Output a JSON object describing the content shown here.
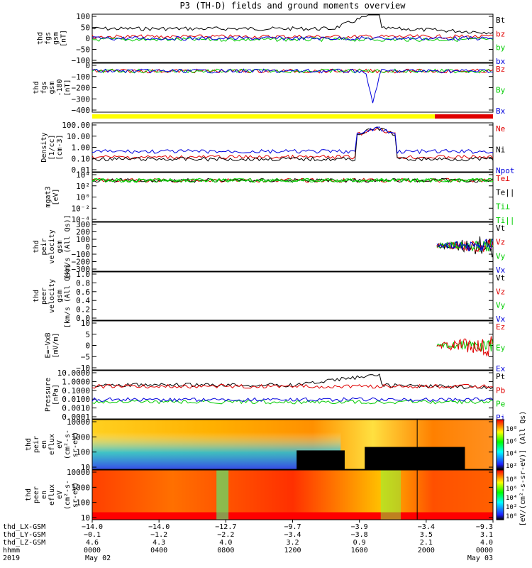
{
  "title": "P3 (TH-D) fields and ground moments overview",
  "colors": {
    "black": "#000000",
    "red": "#e00000",
    "green": "#00cc00",
    "blue": "#0000dd",
    "yellow": "#ffff00"
  },
  "chart_data": [
    {
      "type": "line",
      "ylabel": [
        "thd",
        "fgs",
        "gsm",
        "[nT]"
      ],
      "yticks": [
        "100",
        "50",
        "0",
        "−50",
        "−100"
      ],
      "legend": [
        {
          "name": "Bt",
          "color": "black"
        },
        {
          "name": "bz",
          "color": "red"
        },
        {
          "name": "by",
          "color": "green"
        },
        {
          "name": "bx",
          "color": "blue"
        }
      ]
    },
    {
      "type": "line",
      "ylabel": [
        "thd",
        "fgs",
        "gsm",
        "-180",
        "[nT]"
      ],
      "yticks": [
        "0",
        "−100",
        "−200",
        "−300",
        "−400"
      ],
      "legend": [
        {
          "name": "Bz",
          "color": "red"
        },
        {
          "name": "By",
          "color": "green"
        },
        {
          "name": "Bx",
          "color": "blue"
        }
      ]
    },
    {
      "type": "line",
      "ylabel": [
        "Density",
        "[1/cc]",
        "[cm-3]"
      ],
      "yticks": [
        "100.00",
        "10.00",
        "1.00",
        "0.10",
        "0.01"
      ],
      "legend": [
        {
          "name": "Ne",
          "color": "red"
        },
        {
          "name": "Ni",
          "color": "black"
        },
        {
          "name": "Npot",
          "color": "blue"
        }
      ]
    },
    {
      "type": "line",
      "ylabel": [
        "mgat3",
        "[eV]"
      ],
      "yticks": [
        "10⁴",
        "10²",
        "10⁰",
        "10⁻²",
        "10⁻⁴"
      ],
      "legend": [
        {
          "name": "Te⊥",
          "color": "red"
        },
        {
          "name": "Te||",
          "color": "black"
        },
        {
          "name": "Ti⊥",
          "color": "green"
        },
        {
          "name": "Ti||",
          "color": "green"
        }
      ]
    },
    {
      "type": "line",
      "ylabel": [
        "thd",
        "peir",
        "velocity",
        "gsm",
        "[km/s (All Qs)]"
      ],
      "yticks": [
        "300",
        "200",
        "100",
        "0",
        "−100",
        "−200",
        "−300"
      ],
      "legend": [
        {
          "name": "Vt",
          "color": "black"
        },
        {
          "name": "Vz",
          "color": "red"
        },
        {
          "name": "Vy",
          "color": "green"
        },
        {
          "name": "Vx",
          "color": "blue"
        }
      ]
    },
    {
      "type": "line",
      "ylabel": [
        "thd",
        "peer",
        "velocity",
        "gsm",
        "[km/s (All Qs)]"
      ],
      "yticks": [
        "1.0",
        "0.8",
        "0.6",
        "0.4",
        "0.2",
        "0.0"
      ],
      "legend": [
        {
          "name": "Vt",
          "color": "black"
        },
        {
          "name": "Vz",
          "color": "red"
        },
        {
          "name": "Vy",
          "color": "green"
        },
        {
          "name": "Vx",
          "color": "blue"
        }
      ]
    },
    {
      "type": "line",
      "ylabel": [
        "E=−VxB",
        "[mV/m]"
      ],
      "yticks": [
        "10",
        "5",
        "0",
        "−5",
        "−10"
      ],
      "legend": [
        {
          "name": "Ez",
          "color": "red"
        },
        {
          "name": "Ey",
          "color": "green"
        },
        {
          "name": "Ex",
          "color": "blue"
        }
      ]
    },
    {
      "type": "line",
      "ylabel": [
        "Pressure",
        "[nPa]"
      ],
      "yticks": [
        "10.0000",
        "1.0000",
        "0.1000",
        "0.0100",
        "0.0010",
        "0.0001"
      ],
      "legend": [
        {
          "name": "Pt",
          "color": "black"
        },
        {
          "name": "Pb",
          "color": "red"
        },
        {
          "name": "Pe",
          "color": "green"
        },
        {
          "name": "Pi",
          "color": "blue"
        }
      ]
    },
    {
      "type": "heatmap",
      "ylabel": [
        "thd",
        "peir",
        "en",
        "eflux",
        "eV",
        "(cm²-s-",
        "sr-eV)"
      ],
      "yticks": [
        "10000",
        "1000",
        "100",
        "10"
      ]
    },
    {
      "type": "heatmap",
      "ylabel": [
        "thd",
        "peer",
        "en",
        "eflux",
        "eV",
        "(cm²-s-",
        "sr-eV)"
      ],
      "yticks": [
        "10000",
        "1000",
        "100",
        "10"
      ]
    }
  ],
  "colorbar": {
    "label": "[eV/(cm²-s-sr-eV)] (All Qs)",
    "ticks_top": [
      "10⁸",
      "10⁶",
      "10⁴",
      "10²"
    ],
    "ticks_bottom": [
      "10⁸",
      "10⁶",
      "10⁴",
      "10²",
      "10⁰"
    ]
  },
  "xaxis": {
    "rows": [
      {
        "label": "thd_LX-GSM",
        "values": [
          "−14.0",
          "−14.0",
          "−12.7",
          "−9.7",
          "−3.9",
          "−3.4",
          "−9.3"
        ]
      },
      {
        "label": "thd_LY-GSM",
        "values": [
          "−0.1",
          "−1.2",
          "−2.2",
          "−3.4",
          "−3.8",
          "3.5",
          "3.1"
        ]
      },
      {
        "label": "thd_LZ-GSM",
        "values": [
          "4.6",
          "4.3",
          "4.0",
          "3.2",
          "0.9",
          "2.1",
          "4.0"
        ]
      },
      {
        "label": "hhmm",
        "values": [
          "0000",
          "0400",
          "0800",
          "1200",
          "1600",
          "2000",
          "0000"
        ]
      }
    ],
    "year": "2019",
    "date_start": "May 02",
    "date_end": "May 03"
  }
}
